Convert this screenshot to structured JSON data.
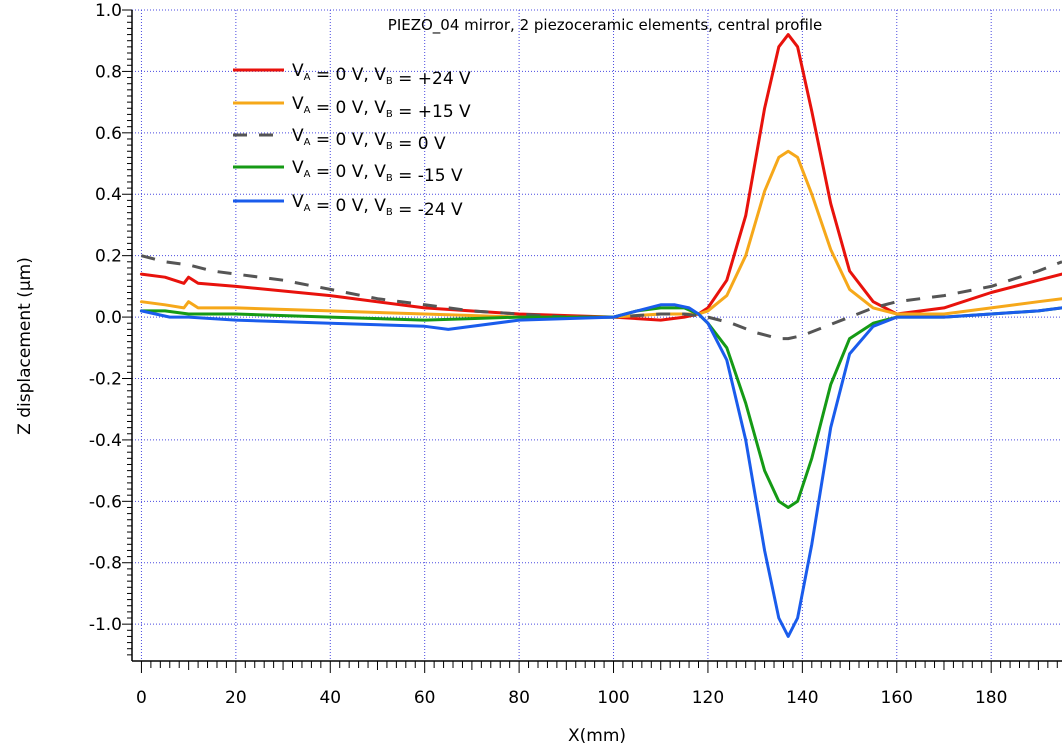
{
  "chart_data": {
    "type": "line",
    "title": "PIEZO_04 mirror, 2 piezoceramic elements, central profile",
    "xlabel": "X(mm)",
    "ylabel": "Z displacement (μm)",
    "xlim": [
      -2,
      195
    ],
    "ylim": [
      -1.12,
      1.0
    ],
    "x_ticks": [
      0,
      20,
      40,
      60,
      80,
      100,
      120,
      140,
      160,
      180
    ],
    "y_ticks": [
      1.0,
      0.8,
      0.6,
      0.4,
      0.2,
      0.0,
      -0.2,
      -0.4,
      -0.6,
      -0.8,
      -1.0
    ],
    "y_tick_labels": [
      "1.0",
      "0.8",
      "0.6",
      "0.4",
      "0.2",
      "0.0",
      "-0.2",
      "-0.4",
      "-0.6",
      "-0.8",
      "-1.0"
    ],
    "x_tick_labels": [
      "0",
      "20",
      "40",
      "60",
      "80",
      "100",
      "120",
      "140",
      "160",
      "180"
    ],
    "grid": true,
    "legend_position": "top-left",
    "series": [
      {
        "legend": {
          "a": "V",
          "a_sub": "A",
          "mid": " = 0 V, ",
          "b": "V",
          "b_sub": "B",
          "end": " = +24 V"
        },
        "color": "#e8120c",
        "dash": "solid",
        "x": [
          0,
          5,
          9,
          10,
          12,
          20,
          40,
          60,
          80,
          100,
          110,
          115,
          118,
          120,
          124,
          128,
          132,
          135,
          137,
          139,
          142,
          146,
          150,
          155,
          160,
          170,
          180,
          190,
          195
        ],
        "y": [
          0.14,
          0.13,
          0.11,
          0.13,
          0.11,
          0.1,
          0.07,
          0.03,
          0.01,
          0.0,
          -0.01,
          0.0,
          0.01,
          0.03,
          0.12,
          0.33,
          0.68,
          0.88,
          0.92,
          0.88,
          0.67,
          0.37,
          0.15,
          0.05,
          0.01,
          0.03,
          0.08,
          0.12,
          0.14
        ]
      },
      {
        "legend": {
          "a": "V",
          "a_sub": "A",
          "mid": " = 0 V, ",
          "b": "V",
          "b_sub": "B",
          "end": " = +15 V"
        },
        "color": "#f6a81a",
        "dash": "solid",
        "x": [
          0,
          5,
          9,
          10,
          12,
          20,
          40,
          60,
          80,
          100,
          110,
          115,
          118,
          120,
          124,
          128,
          132,
          135,
          137,
          139,
          142,
          146,
          150,
          155,
          160,
          170,
          180,
          190,
          195
        ],
        "y": [
          0.05,
          0.04,
          0.03,
          0.05,
          0.03,
          0.03,
          0.02,
          0.01,
          0.0,
          0.0,
          0.01,
          0.01,
          0.01,
          0.02,
          0.07,
          0.2,
          0.41,
          0.52,
          0.54,
          0.52,
          0.4,
          0.22,
          0.09,
          0.03,
          0.01,
          0.01,
          0.03,
          0.05,
          0.06
        ]
      },
      {
        "legend": {
          "a": "V",
          "a_sub": "A",
          "mid": " = 0 V, ",
          "b": "V",
          "b_sub": "B",
          "end": " = 0 V"
        },
        "color": "#555555",
        "dash": "dashed",
        "x": [
          0,
          5,
          10,
          15,
          20,
          30,
          40,
          50,
          60,
          70,
          80,
          90,
          100,
          110,
          115,
          120,
          125,
          130,
          135,
          137,
          140,
          145,
          150,
          155,
          160,
          170,
          180,
          190,
          195
        ],
        "y": [
          0.2,
          0.18,
          0.17,
          0.15,
          0.14,
          0.12,
          0.09,
          0.06,
          0.04,
          0.02,
          0.01,
          0.0,
          0.0,
          0.01,
          0.01,
          0.0,
          -0.02,
          -0.05,
          -0.07,
          -0.07,
          -0.06,
          -0.03,
          0.0,
          0.03,
          0.05,
          0.07,
          0.1,
          0.15,
          0.18
        ]
      },
      {
        "legend": {
          "a": "V",
          "a_sub": "A",
          "mid": " = 0 V, ",
          "b": "V",
          "b_sub": "B",
          "end": " = -15 V"
        },
        "color": "#159a15",
        "dash": "solid",
        "x": [
          0,
          5,
          10,
          20,
          40,
          60,
          80,
          100,
          105,
          110,
          115,
          118,
          120,
          124,
          128,
          132,
          135,
          137,
          139,
          142,
          146,
          150,
          155,
          160,
          170,
          180,
          190,
          195
        ],
        "y": [
          0.02,
          0.02,
          0.01,
          0.01,
          0.0,
          -0.01,
          0.0,
          0.0,
          0.02,
          0.03,
          0.03,
          0.01,
          -0.02,
          -0.1,
          -0.28,
          -0.5,
          -0.6,
          -0.62,
          -0.6,
          -0.46,
          -0.22,
          -0.07,
          -0.02,
          0.0,
          0.0,
          0.01,
          0.02,
          0.03
        ]
      },
      {
        "legend": {
          "a": "V",
          "a_sub": "A",
          "mid": " = 0 V, ",
          "b": "V",
          "b_sub": "B",
          "end": " = -24 V"
        },
        "color": "#1a5cec",
        "dash": "solid",
        "x": [
          0,
          3,
          6,
          10,
          20,
          40,
          60,
          65,
          80,
          100,
          105,
          110,
          113,
          116,
          118,
          120,
          124,
          128,
          132,
          135,
          137,
          139,
          142,
          146,
          150,
          155,
          160,
          170,
          180,
          190,
          195
        ],
        "y": [
          0.02,
          0.01,
          0.0,
          0.0,
          -0.01,
          -0.02,
          -0.03,
          -0.04,
          -0.01,
          0.0,
          0.02,
          0.04,
          0.04,
          0.03,
          0.01,
          -0.02,
          -0.14,
          -0.4,
          -0.76,
          -0.98,
          -1.04,
          -0.98,
          -0.74,
          -0.36,
          -0.12,
          -0.03,
          0.0,
          0.0,
          0.01,
          0.02,
          0.03
        ]
      }
    ]
  }
}
